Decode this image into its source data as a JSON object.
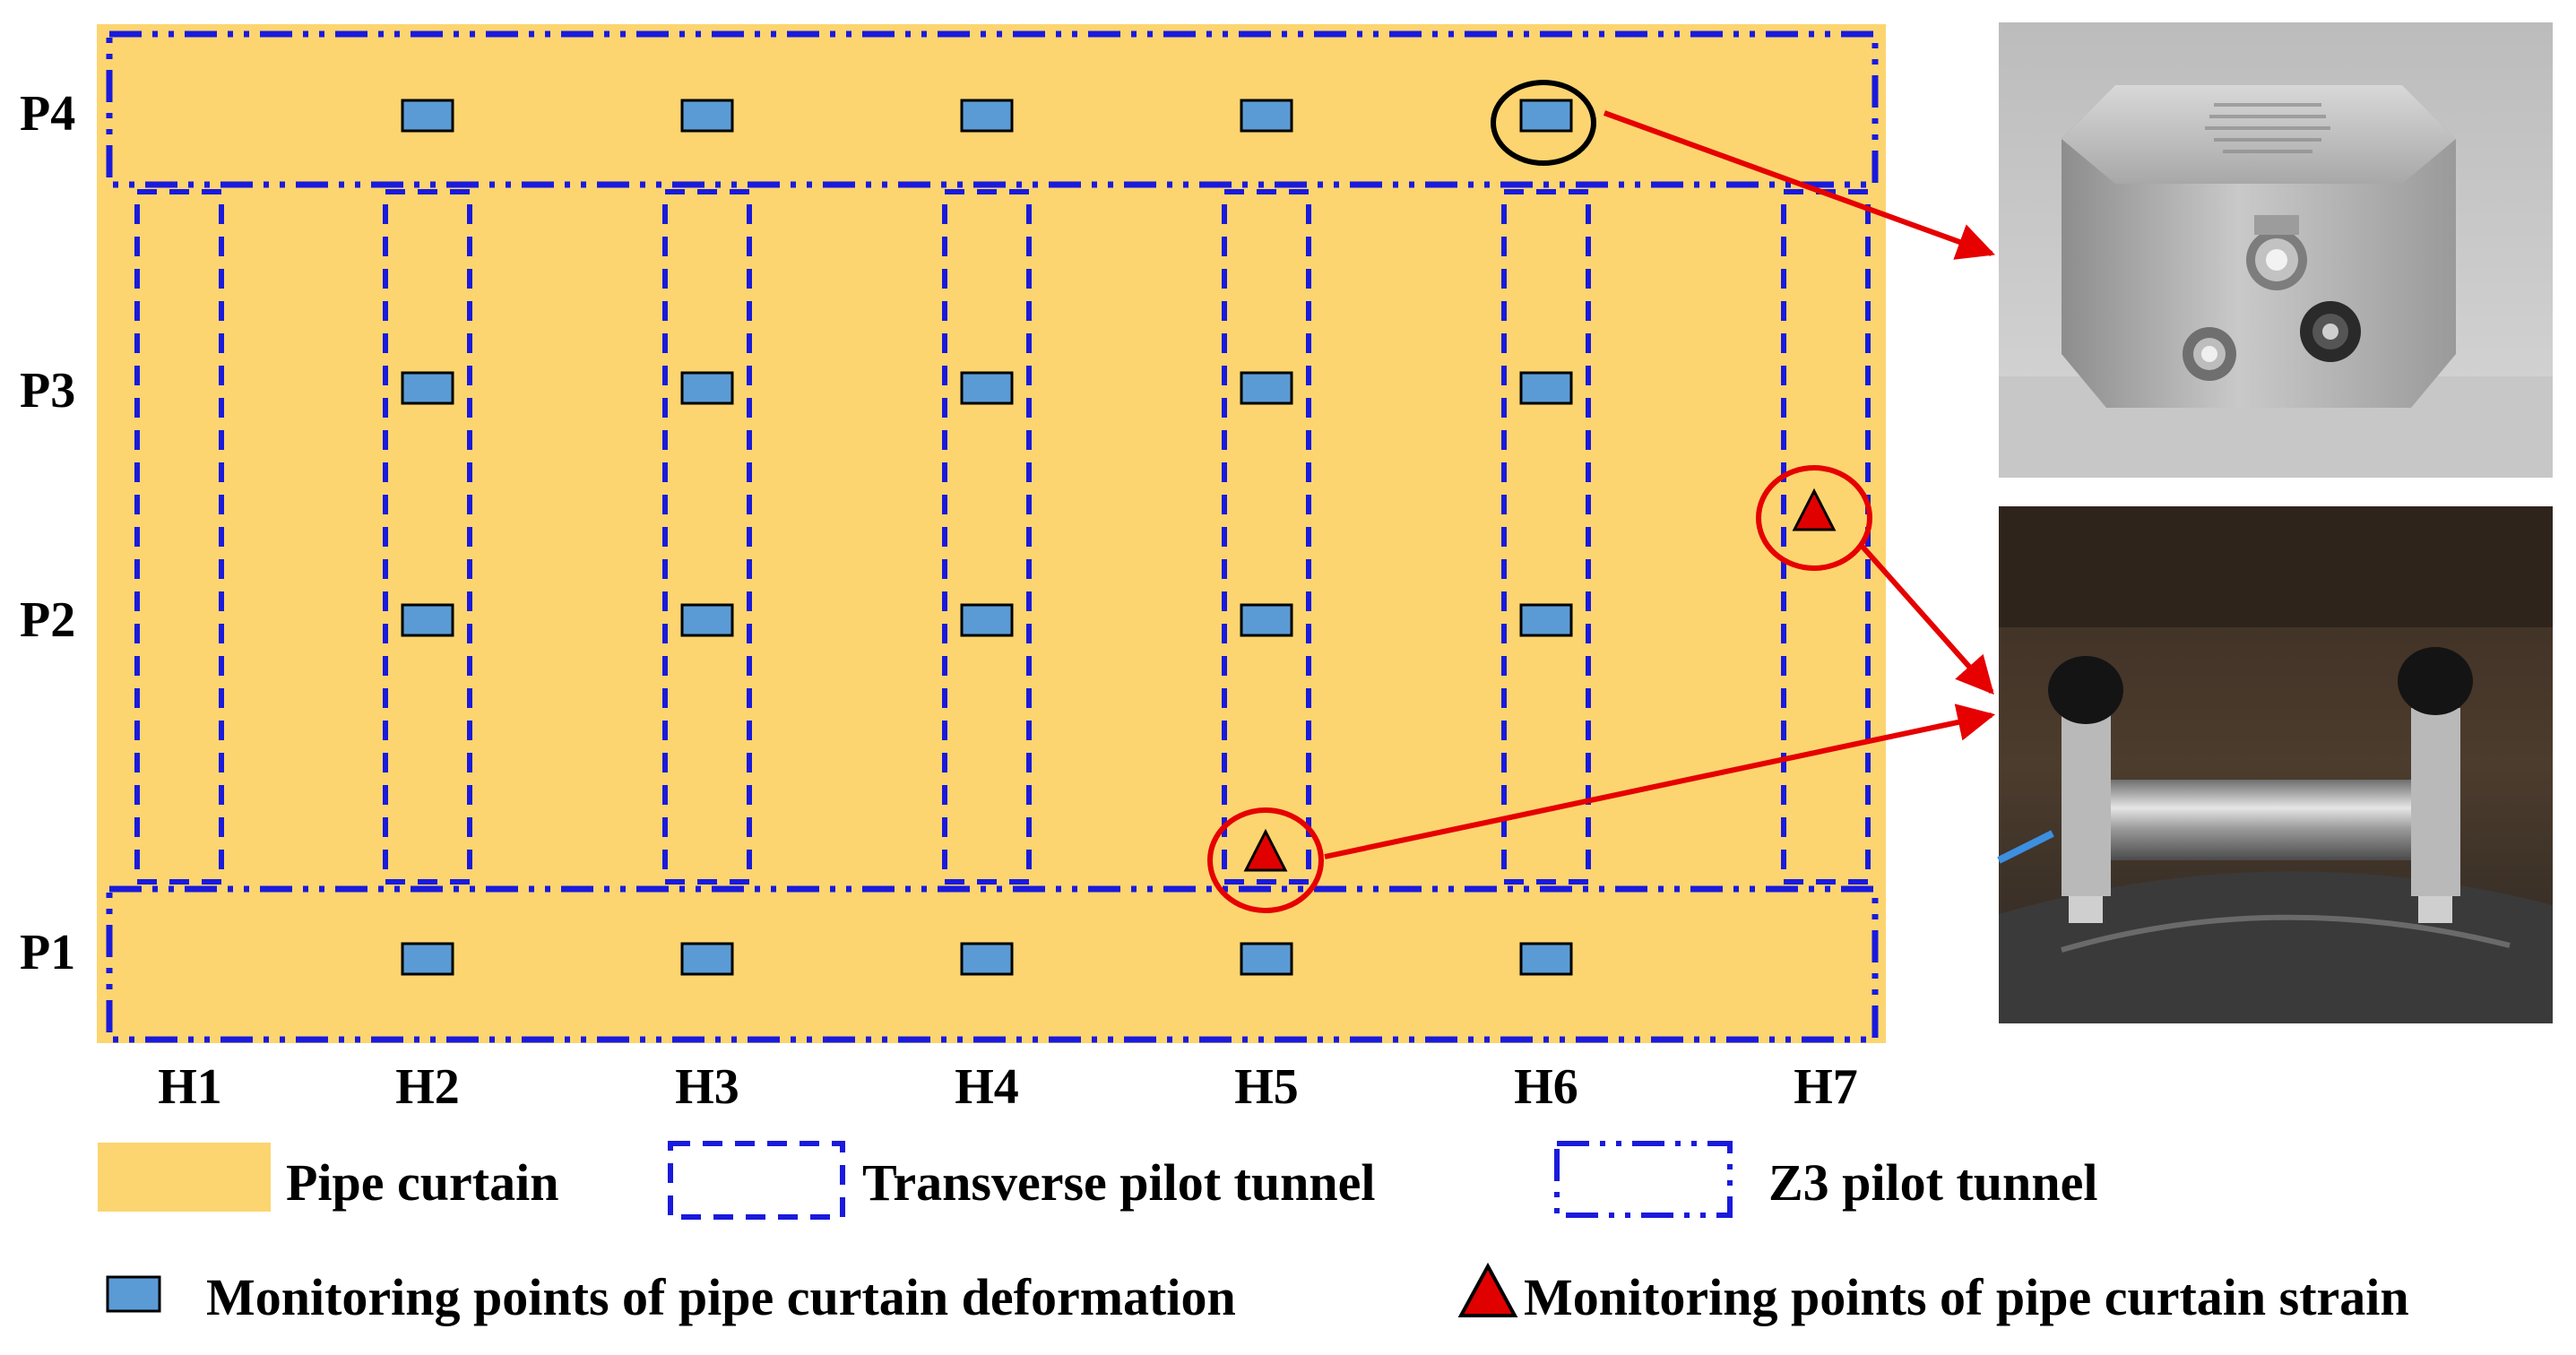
{
  "colors": {
    "pipe_curtain": "#fcd570",
    "tunnel_border": "#1a1adc",
    "deformation_marker": "#5b9bd5",
    "strain_marker": "#e00000",
    "callout_arrow": "#e60000",
    "highlight_circle_black": "#000000"
  },
  "rows": [
    {
      "id": "P4",
      "label": "P4"
    },
    {
      "id": "P3",
      "label": "P3"
    },
    {
      "id": "P2",
      "label": "P2"
    },
    {
      "id": "P1",
      "label": "P1"
    }
  ],
  "columns": [
    {
      "id": "H1",
      "label": "H1"
    },
    {
      "id": "H2",
      "label": "H2"
    },
    {
      "id": "H3",
      "label": "H3"
    },
    {
      "id": "H4",
      "label": "H4"
    },
    {
      "id": "H5",
      "label": "H5"
    },
    {
      "id": "H6",
      "label": "H6"
    },
    {
      "id": "H7",
      "label": "H7"
    }
  ],
  "deformation_points": [
    {
      "row": "P4",
      "col": "H2"
    },
    {
      "row": "P4",
      "col": "H3"
    },
    {
      "row": "P4",
      "col": "H4"
    },
    {
      "row": "P4",
      "col": "H5"
    },
    {
      "row": "P4",
      "col": "H6"
    },
    {
      "row": "P3",
      "col": "H2"
    },
    {
      "row": "P3",
      "col": "H3"
    },
    {
      "row": "P3",
      "col": "H4"
    },
    {
      "row": "P3",
      "col": "H5"
    },
    {
      "row": "P3",
      "col": "H6"
    },
    {
      "row": "P2",
      "col": "H2"
    },
    {
      "row": "P2",
      "col": "H3"
    },
    {
      "row": "P2",
      "col": "H4"
    },
    {
      "row": "P2",
      "col": "H5"
    },
    {
      "row": "P2",
      "col": "H6"
    },
    {
      "row": "P1",
      "col": "H2"
    },
    {
      "row": "P1",
      "col": "H3"
    },
    {
      "row": "P1",
      "col": "H4"
    },
    {
      "row": "P1",
      "col": "H5"
    },
    {
      "row": "P1",
      "col": "H6"
    }
  ],
  "strain_points": [
    {
      "col": "H7",
      "between": "P3-P2"
    },
    {
      "col": "H5",
      "between": "P2-P1"
    }
  ],
  "highlighted": {
    "deformation": {
      "row": "P4",
      "col": "H6",
      "circle": "black"
    },
    "strain": "red circles"
  },
  "photos": [
    {
      "name": "deformation-sensor-photo",
      "depicts": "displacement-sensor"
    },
    {
      "name": "strain-gauge-photo",
      "depicts": "strain-gauge"
    }
  ],
  "legend": {
    "pipe_curtain": "Pipe curtain",
    "transverse_tunnel": "Transverse pilot tunnel",
    "z3_tunnel": "Z3 pilot tunnel",
    "deformation_points": "Monitoring points of pipe curtain deformation",
    "strain_points": "Monitoring points of pipe curtain strain"
  }
}
